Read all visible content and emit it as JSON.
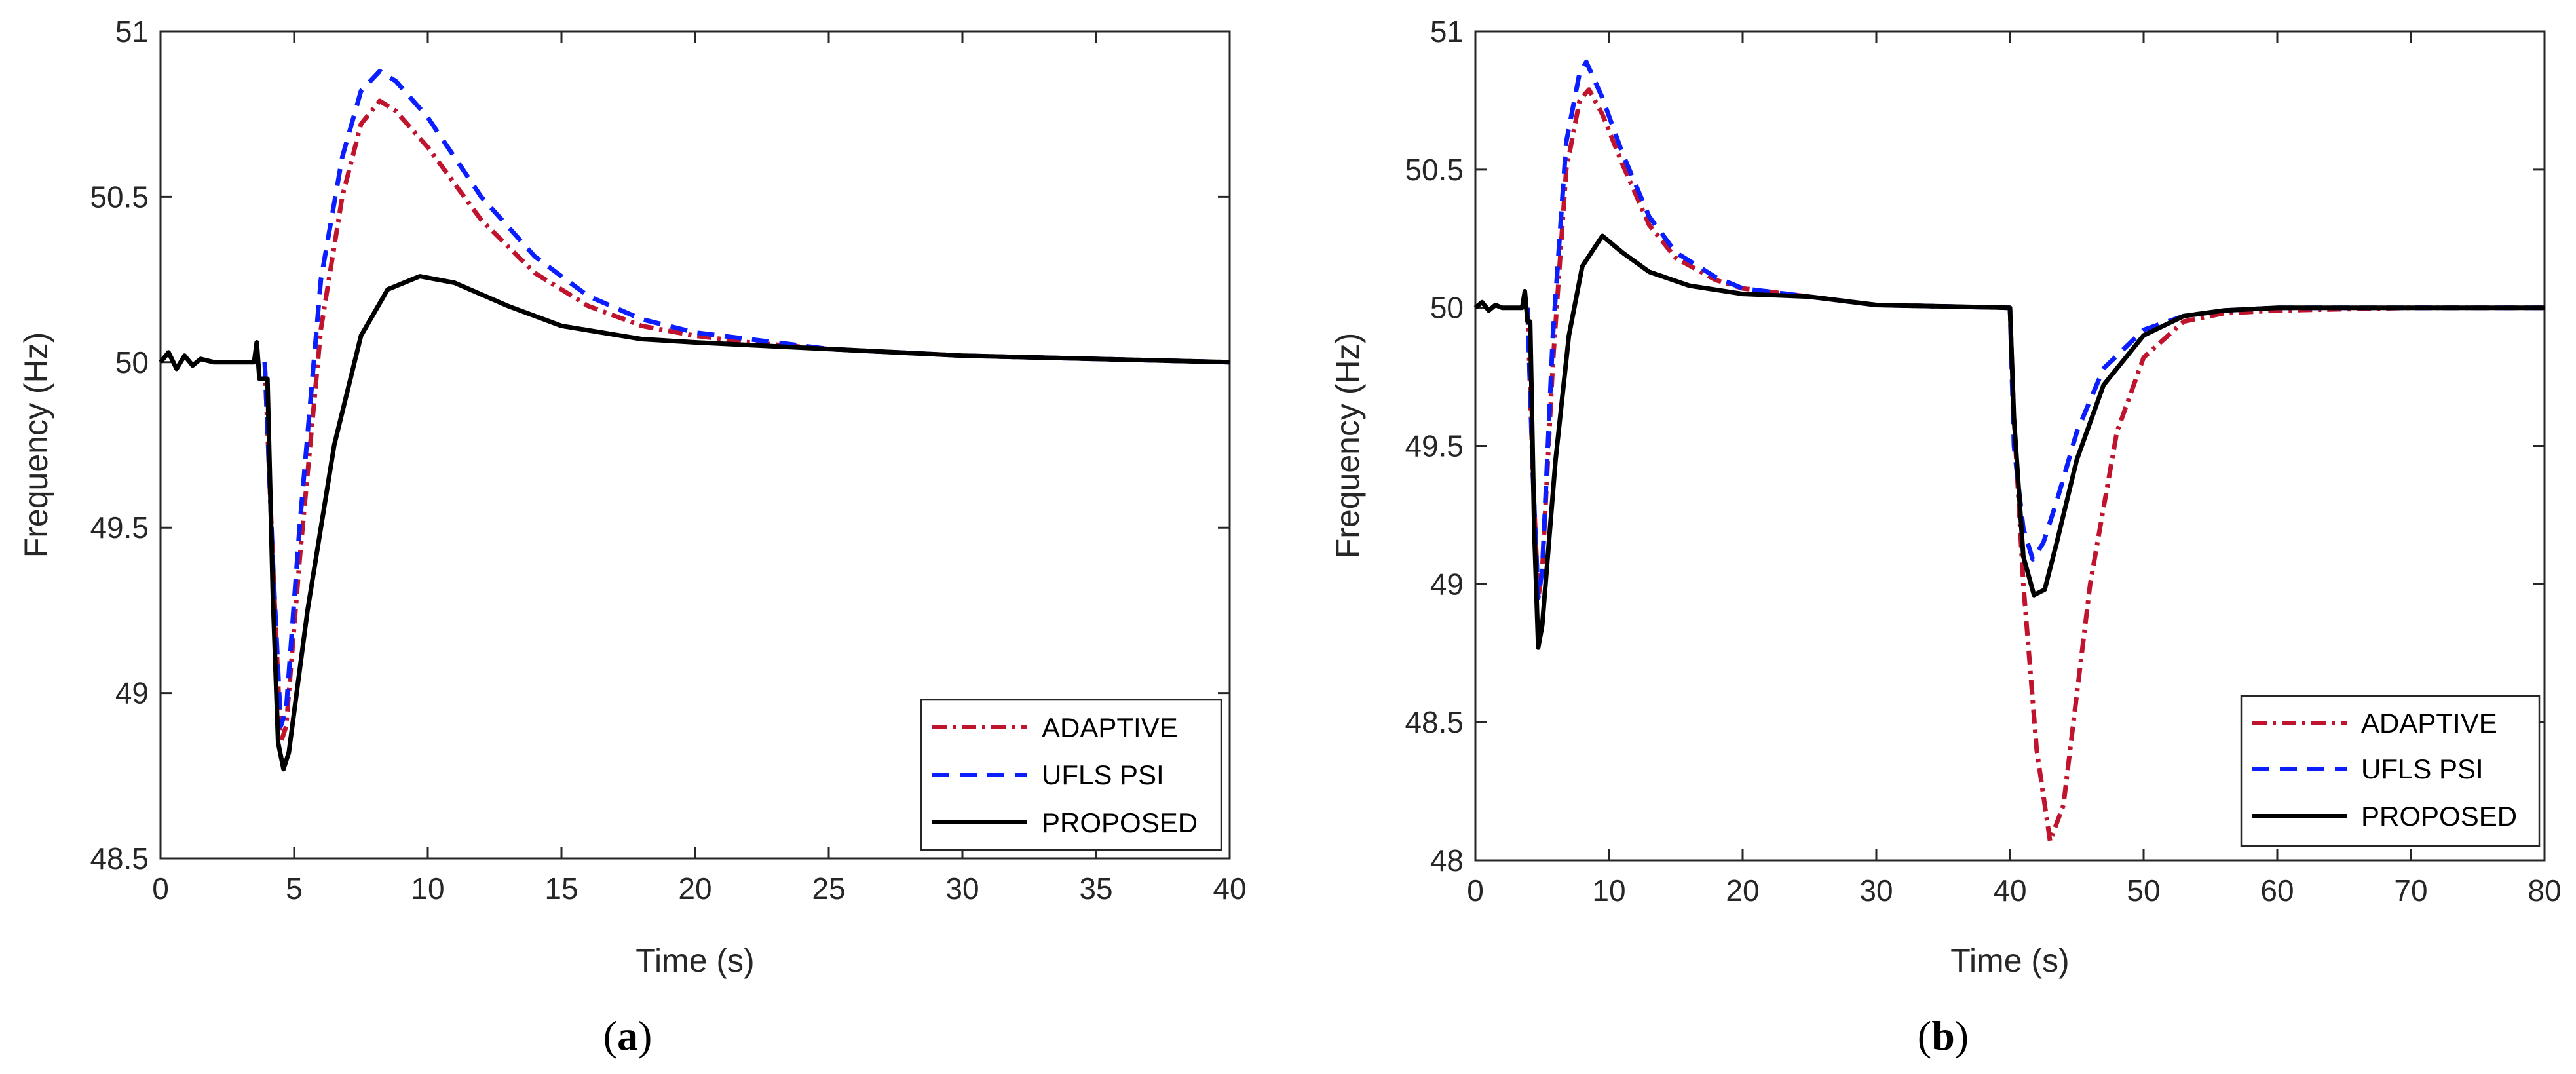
{
  "chart_data": [
    {
      "type": "line",
      "panel": "a",
      "caption": {
        "open": "(",
        "letter": "a",
        "close": ")"
      },
      "xlabel": "Time (s)",
      "ylabel": "Frequency (Hz)",
      "xlim": [
        0,
        40
      ],
      "ylim": [
        48.5,
        51
      ],
      "xticks": [
        0,
        5,
        10,
        15,
        20,
        25,
        30,
        35,
        40
      ],
      "yticks": [
        48.5,
        49,
        49.5,
        50,
        50.5,
        51
      ],
      "ytick_labels": [
        "48.5",
        "49",
        "49.5",
        "50",
        "50.5",
        "51"
      ],
      "grid": false,
      "legend_position": "bottom-right",
      "series": [
        {
          "name": "ADAPTIVE",
          "color": "#c0142e",
          "style": "dashdot",
          "points": [
            [
              3.9,
              50.0
            ],
            [
              4.2,
              49.4
            ],
            [
              4.5,
              48.85
            ],
            [
              4.7,
              48.9
            ],
            [
              5.2,
              49.4
            ],
            [
              6.0,
              50.1
            ],
            [
              6.8,
              50.5
            ],
            [
              7.5,
              50.72
            ],
            [
              8.2,
              50.79
            ],
            [
              8.8,
              50.76
            ],
            [
              10,
              50.65
            ],
            [
              12,
              50.43
            ],
            [
              14,
              50.27
            ],
            [
              16,
              50.17
            ],
            [
              18,
              50.11
            ],
            [
              20,
              50.08
            ],
            [
              22,
              50.06
            ],
            [
              25,
              50.04
            ],
            [
              30,
              50.02
            ],
            [
              35,
              50.01
            ],
            [
              40,
              50.0
            ]
          ]
        },
        {
          "name": "UFLS PSI",
          "color": "#0a1eff",
          "style": "dashed",
          "points": [
            [
              3.9,
              50.0
            ],
            [
              4.2,
              49.4
            ],
            [
              4.5,
              48.9
            ],
            [
              4.7,
              48.95
            ],
            [
              5.2,
              49.5
            ],
            [
              6.0,
              50.25
            ],
            [
              6.8,
              50.62
            ],
            [
              7.5,
              50.82
            ],
            [
              8.2,
              50.88
            ],
            [
              8.8,
              50.85
            ],
            [
              10,
              50.74
            ],
            [
              12,
              50.5
            ],
            [
              14,
              50.32
            ],
            [
              16,
              50.2
            ],
            [
              18,
              50.13
            ],
            [
              20,
              50.09
            ],
            [
              22,
              50.07
            ],
            [
              25,
              50.04
            ],
            [
              30,
              50.02
            ],
            [
              35,
              50.01
            ],
            [
              40,
              50.0
            ]
          ]
        },
        {
          "name": "PROPOSED",
          "color": "#000000",
          "style": "solid",
          "points": [
            [
              0,
              50.0
            ],
            [
              0.3,
              50.03
            ],
            [
              0.6,
              49.98
            ],
            [
              0.9,
              50.02
            ],
            [
              1.2,
              49.99
            ],
            [
              1.5,
              50.01
            ],
            [
              2,
              50.0
            ],
            [
              3.5,
              50.0
            ],
            [
              3.6,
              50.06
            ],
            [
              3.7,
              49.95
            ],
            [
              4.0,
              49.95
            ],
            [
              4.2,
              49.3
            ],
            [
              4.4,
              48.85
            ],
            [
              4.6,
              48.77
            ],
            [
              4.8,
              48.82
            ],
            [
              5.5,
              49.25
            ],
            [
              6.5,
              49.75
            ],
            [
              7.5,
              50.08
            ],
            [
              8.5,
              50.22
            ],
            [
              9.7,
              50.26
            ],
            [
              11,
              50.24
            ],
            [
              13,
              50.17
            ],
            [
              15,
              50.11
            ],
            [
              18,
              50.07
            ],
            [
              20,
              50.06
            ],
            [
              25,
              50.04
            ],
            [
              30,
              50.02
            ],
            [
              35,
              50.01
            ],
            [
              40,
              50.0
            ]
          ]
        }
      ]
    },
    {
      "type": "line",
      "panel": "b",
      "caption": {
        "open": "(",
        "letter": "b",
        "close": ")"
      },
      "xlabel": "Time (s)",
      "ylabel": "Frequency (Hz)",
      "xlim": [
        0,
        80
      ],
      "ylim": [
        48,
        51
      ],
      "xticks": [
        0,
        10,
        20,
        30,
        40,
        50,
        60,
        70,
        80
      ],
      "yticks": [
        48,
        48.5,
        49,
        49.5,
        50,
        50.5,
        51
      ],
      "ytick_labels": [
        "48",
        "48.5",
        "49",
        "49.5",
        "50",
        "50.5",
        "51"
      ],
      "grid": false,
      "legend_position": "bottom-right",
      "series": [
        {
          "name": "ADAPTIVE",
          "color": "#c0142e",
          "style": "dashdot",
          "points": [
            [
              3.9,
              50.0
            ],
            [
              4.3,
              49.4
            ],
            [
              4.7,
              48.95
            ],
            [
              5.0,
              49.05
            ],
            [
              5.8,
              49.8
            ],
            [
              6.8,
              50.5
            ],
            [
              7.8,
              50.75
            ],
            [
              8.5,
              50.79
            ],
            [
              9.5,
              50.7
            ],
            [
              11,
              50.52
            ],
            [
              13,
              50.3
            ],
            [
              15,
              50.18
            ],
            [
              18,
              50.1
            ],
            [
              20,
              50.07
            ],
            [
              25,
              50.04
            ],
            [
              30,
              50.01
            ],
            [
              40,
              50.0
            ],
            [
              40.3,
              49.6
            ],
            [
              41,
              49.0
            ],
            [
              42,
              48.4
            ],
            [
              43,
              48.07
            ],
            [
              44,
              48.2
            ],
            [
              45,
              48.6
            ],
            [
              46,
              49.0
            ],
            [
              48,
              49.55
            ],
            [
              50,
              49.82
            ],
            [
              53,
              49.95
            ],
            [
              56,
              49.98
            ],
            [
              60,
              49.99
            ],
            [
              70,
              50.0
            ],
            [
              80,
              50.0
            ]
          ]
        },
        {
          "name": "UFLS PSI",
          "color": "#0a1eff",
          "style": "dashed",
          "points": [
            [
              3.9,
              50.0
            ],
            [
              4.3,
              49.4
            ],
            [
              4.7,
              48.95
            ],
            [
              5.0,
              49.05
            ],
            [
              5.8,
              49.9
            ],
            [
              6.8,
              50.6
            ],
            [
              7.8,
              50.85
            ],
            [
              8.3,
              50.89
            ],
            [
              9.5,
              50.76
            ],
            [
              11,
              50.56
            ],
            [
              13,
              50.33
            ],
            [
              15,
              50.2
            ],
            [
              18,
              50.11
            ],
            [
              20,
              50.07
            ],
            [
              25,
              50.04
            ],
            [
              30,
              50.01
            ],
            [
              40,
              50.0
            ],
            [
              40.3,
              49.5
            ],
            [
              41,
              49.2
            ],
            [
              41.7,
              49.09
            ],
            [
              42.5,
              49.15
            ],
            [
              43.5,
              49.3
            ],
            [
              45,
              49.55
            ],
            [
              47,
              49.78
            ],
            [
              50,
              49.92
            ],
            [
              53,
              49.97
            ],
            [
              56,
              49.99
            ],
            [
              60,
              50.0
            ],
            [
              70,
              50.0
            ],
            [
              80,
              50.0
            ]
          ]
        },
        {
          "name": "PROPOSED",
          "color": "#000000",
          "style": "solid",
          "points": [
            [
              0,
              50.0
            ],
            [
              0.5,
              50.02
            ],
            [
              1,
              49.99
            ],
            [
              1.5,
              50.01
            ],
            [
              2,
              50.0
            ],
            [
              3.5,
              50.0
            ],
            [
              3.7,
              50.06
            ],
            [
              3.9,
              49.95
            ],
            [
              4.1,
              49.95
            ],
            [
              4.4,
              49.2
            ],
            [
              4.7,
              48.77
            ],
            [
              5.0,
              48.85
            ],
            [
              6,
              49.45
            ],
            [
              7,
              49.9
            ],
            [
              8,
              50.15
            ],
            [
              9.5,
              50.26
            ],
            [
              11,
              50.2
            ],
            [
              13,
              50.13
            ],
            [
              16,
              50.08
            ],
            [
              20,
              50.05
            ],
            [
              25,
              50.04
            ],
            [
              30,
              50.01
            ],
            [
              40,
              50.0
            ],
            [
              40.3,
              49.6
            ],
            [
              41,
              49.1
            ],
            [
              41.8,
              48.96
            ],
            [
              42.6,
              48.98
            ],
            [
              43.5,
              49.15
            ],
            [
              45,
              49.45
            ],
            [
              47,
              49.72
            ],
            [
              50,
              49.9
            ],
            [
              53,
              49.97
            ],
            [
              56,
              49.99
            ],
            [
              60,
              50.0
            ],
            [
              70,
              50.0
            ],
            [
              80,
              50.0
            ]
          ]
        }
      ]
    }
  ]
}
